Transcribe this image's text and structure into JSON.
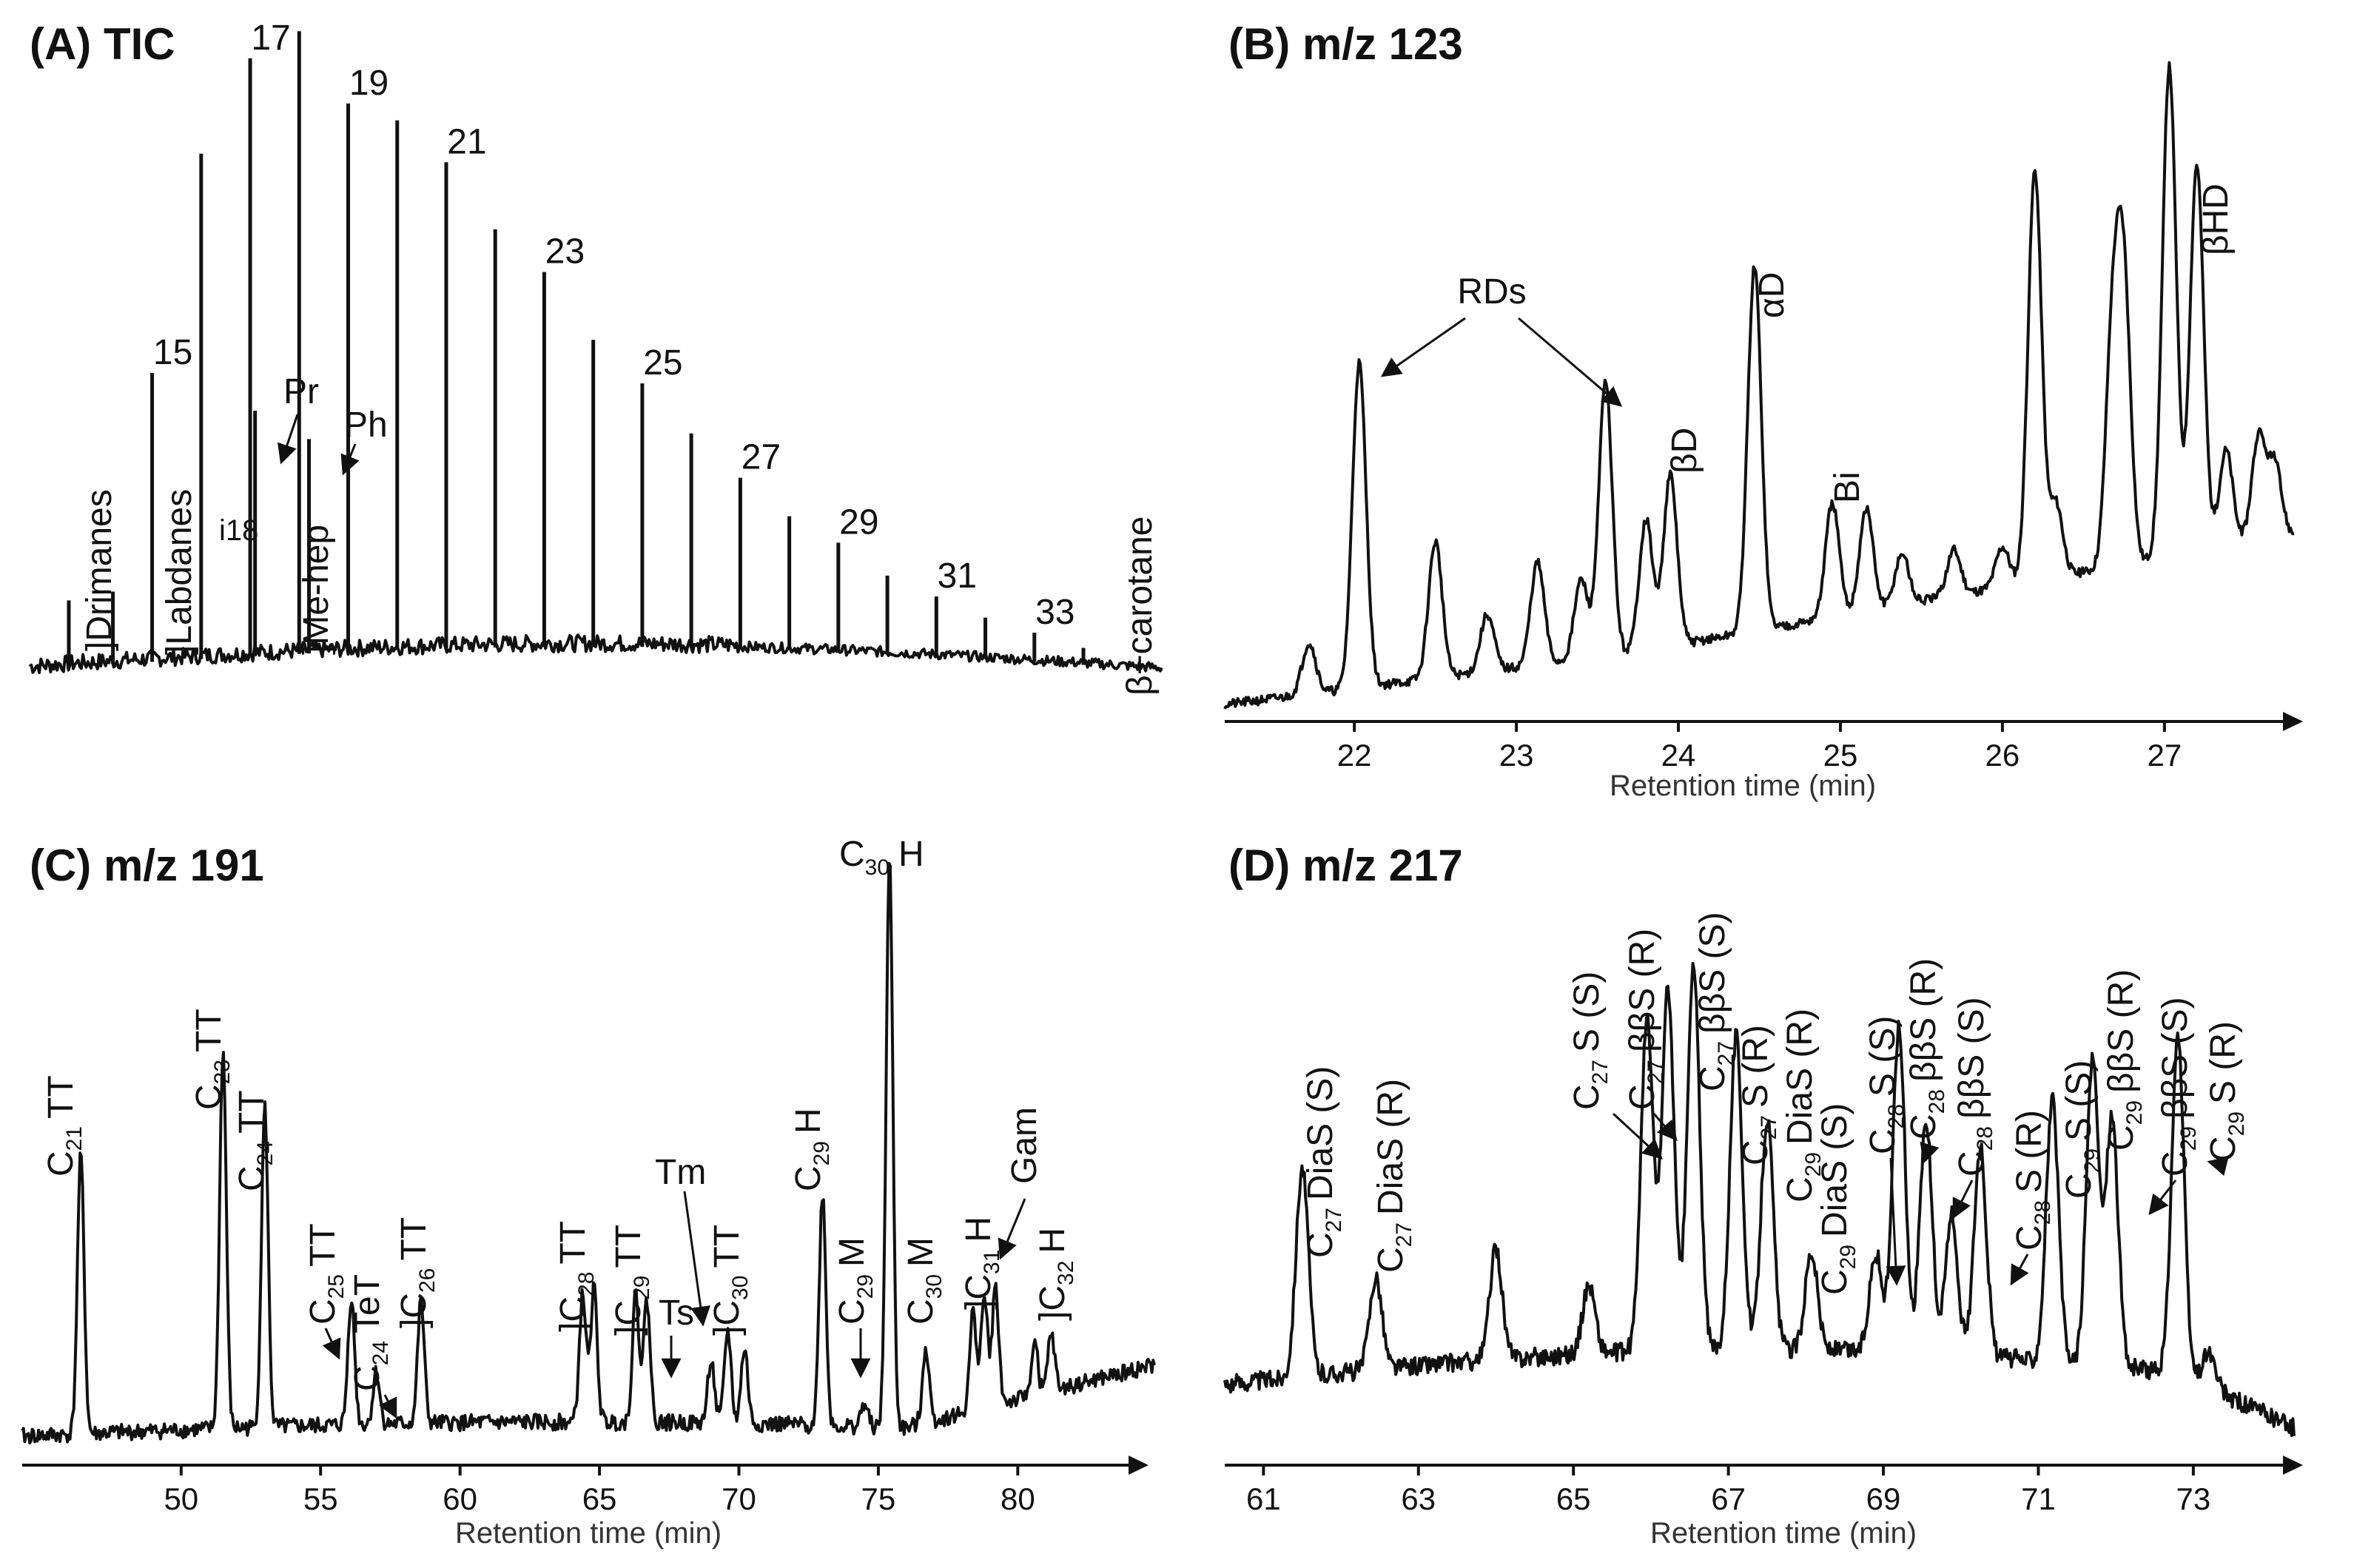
{
  "chart_data": [
    {
      "type": "line",
      "title": "(A) TIC",
      "xlabel": "",
      "ylabel": "",
      "ylim": [
        0,
        100
      ],
      "description_units": "relative abundance vs retention index (n-alkane carbon number)",
      "peaks": [
        {
          "x": 13.3,
          "h": 11
        },
        {
          "x": 14.2,
          "h": 12
        },
        {
          "x": 15.0,
          "h": 47
        },
        {
          "x": 16.0,
          "h": 82
        },
        {
          "x": 17.0,
          "h": 97
        },
        {
          "x": 17.1,
          "h": 40
        },
        {
          "x": 18.0,
          "h": 101
        },
        {
          "x": 18.2,
          "h": 35
        },
        {
          "x": 19.0,
          "h": 89
        },
        {
          "x": 20.0,
          "h": 86
        },
        {
          "x": 21.0,
          "h": 79
        },
        {
          "x": 22.0,
          "h": 68
        },
        {
          "x": 23.0,
          "h": 61
        },
        {
          "x": 24.0,
          "h": 50
        },
        {
          "x": 25.0,
          "h": 43
        },
        {
          "x": 26.0,
          "h": 35
        },
        {
          "x": 27.0,
          "h": 28
        },
        {
          "x": 28.0,
          "h": 22
        },
        {
          "x": 29.0,
          "h": 18
        },
        {
          "x": 30.0,
          "h": 13
        },
        {
          "x": 31.0,
          "h": 10
        },
        {
          "x": 32.0,
          "h": 7
        },
        {
          "x": 33.0,
          "h": 5
        },
        {
          "x": 34.0,
          "h": 3
        }
      ],
      "labels": [
        {
          "text": "15",
          "x": 15.0
        },
        {
          "text": "17",
          "x": 17.0
        },
        {
          "text": "19",
          "x": 19.0
        },
        {
          "text": "21",
          "x": 21.0
        },
        {
          "text": "23",
          "x": 23.0
        },
        {
          "text": "25",
          "x": 25.0
        },
        {
          "text": "27",
          "x": 27.0
        },
        {
          "text": "29",
          "x": 29.0
        },
        {
          "text": "31",
          "x": 31.0
        },
        {
          "text": "33",
          "x": 33.0
        }
      ],
      "annotations": [
        "Drimanes",
        "Labdanes",
        "i18",
        "Pr",
        "Me-hep",
        "Ph",
        "β−carotane"
      ]
    },
    {
      "type": "line",
      "title": "(B) m/z 123",
      "xlabel": "Retention time (min)",
      "ylabel": "",
      "xlim": [
        21.2,
        27.8
      ],
      "ylim": [
        0,
        100
      ],
      "xticks": [
        22,
        23,
        24,
        25,
        26,
        27
      ],
      "peaks": [
        {
          "x": 21.72,
          "h": 9
        },
        {
          "x": 22.03,
          "h": 57
        },
        {
          "x": 22.5,
          "h": 24
        },
        {
          "x": 22.82,
          "h": 10
        },
        {
          "x": 23.13,
          "h": 18
        },
        {
          "x": 23.4,
          "h": 14
        },
        {
          "x": 23.55,
          "h": 48
        },
        {
          "x": 23.8,
          "h": 23
        },
        {
          "x": 23.95,
          "h": 30
        },
        {
          "x": 24.47,
          "h": 64
        },
        {
          "x": 24.95,
          "h": 20
        },
        {
          "x": 25.16,
          "h": 18
        },
        {
          "x": 25.38,
          "h": 9
        },
        {
          "x": 25.7,
          "h": 8
        },
        {
          "x": 26.0,
          "h": 7
        },
        {
          "x": 26.2,
          "h": 72
        },
        {
          "x": 26.33,
          "h": 13
        },
        {
          "x": 26.68,
          "h": 40
        },
        {
          "x": 26.75,
          "h": 48
        },
        {
          "x": 27.03,
          "h": 86
        },
        {
          "x": 27.2,
          "h": 68
        },
        {
          "x": 27.38,
          "h": 17
        },
        {
          "x": 27.58,
          "h": 18
        },
        {
          "x": 27.68,
          "h": 13
        }
      ],
      "annotations": [
        "RDs",
        "βD",
        "αD",
        "Bi",
        "βHD"
      ]
    },
    {
      "type": "line",
      "title": "(C) m/z 191",
      "xlabel": "Retention time (min)",
      "ylabel": "",
      "xlim": [
        44.3,
        84.9
      ],
      "ylim": [
        0,
        100
      ],
      "xticks": [
        50,
        55,
        60,
        65,
        70,
        75,
        80
      ],
      "peaks": [
        {
          "x": 46.4,
          "h": 48
        },
        {
          "x": 51.5,
          "h": 65
        },
        {
          "x": 53.0,
          "h": 55
        },
        {
          "x": 56.1,
          "h": 22
        },
        {
          "x": 57.0,
          "h": 9
        },
        {
          "x": 58.6,
          "h": 21
        },
        {
          "x": 64.4,
          "h": 22
        },
        {
          "x": 64.8,
          "h": 23
        },
        {
          "x": 66.3,
          "h": 22
        },
        {
          "x": 66.7,
          "h": 21
        },
        {
          "x": 69.0,
          "h": 11
        },
        {
          "x": 69.6,
          "h": 16
        },
        {
          "x": 70.2,
          "h": 13
        },
        {
          "x": 73.0,
          "h": 40
        },
        {
          "x": 74.5,
          "h": 4
        },
        {
          "x": 75.4,
          "h": 98
        },
        {
          "x": 76.7,
          "h": 13
        },
        {
          "x": 78.4,
          "h": 17
        },
        {
          "x": 78.8,
          "h": 19
        },
        {
          "x": 79.2,
          "h": 20
        },
        {
          "x": 80.6,
          "h": 9
        },
        {
          "x": 81.2,
          "h": 10
        }
      ],
      "annotations": [
        "C21 TT",
        "C23 TT",
        "C24 TT",
        "C25 TT",
        "C24 TeT",
        "C26 TT",
        "C28 TT",
        "C29 TT",
        "Ts",
        "Tm",
        "C30 TT",
        "C29 H",
        "C29 M",
        "C30 H",
        "C30 M",
        "C31 H",
        "Gam",
        "C32 H"
      ]
    },
    {
      "type": "line",
      "title": "(D) m/z 217",
      "xlabel": "Retention time (min)",
      "ylabel": "",
      "xlim": [
        60.5,
        74.3
      ],
      "ylim": [
        0,
        100
      ],
      "xticks": [
        61,
        63,
        65,
        67,
        69,
        71,
        73
      ],
      "peaks": [
        {
          "x": 61.5,
          "h": 36
        },
        {
          "x": 62.45,
          "h": 16
        },
        {
          "x": 64.0,
          "h": 19
        },
        {
          "x": 65.2,
          "h": 12
        },
        {
          "x": 65.95,
          "h": 57
        },
        {
          "x": 66.22,
          "h": 62
        },
        {
          "x": 66.55,
          "h": 66
        },
        {
          "x": 67.1,
          "h": 54
        },
        {
          "x": 67.5,
          "h": 40
        },
        {
          "x": 68.07,
          "h": 17
        },
        {
          "x": 68.9,
          "h": 17
        },
        {
          "x": 69.2,
          "h": 56
        },
        {
          "x": 69.55,
          "h": 40
        },
        {
          "x": 69.88,
          "h": 24
        },
        {
          "x": 70.25,
          "h": 36
        },
        {
          "x": 71.18,
          "h": 45
        },
        {
          "x": 71.7,
          "h": 52
        },
        {
          "x": 71.95,
          "h": 43
        },
        {
          "x": 72.8,
          "h": 58
        },
        {
          "x": 73.2,
          "h": 6
        }
      ],
      "annotations": [
        "C27 DiaS (S)",
        "C27 DiaS (R)",
        "C27 S (S)",
        "C27 ββS (R)",
        "C27 ββS (S)",
        "C27 S (R)",
        "C29 DiaS (R)",
        "C29 DiaS (S)",
        "C28 S (S)",
        "C28 ββS (R)",
        "C28 ββS (S)",
        "C28 S (R)",
        "C29 S (S)",
        "C29 ββS (R)",
        "C29 ββS (S)",
        "C29 S (R)"
      ]
    }
  ],
  "panels": {
    "a": {
      "title": "(A) TIC",
      "lab_drimanes": "Drimanes",
      "lab_labdanes": "Labdanes",
      "lab_i18": "i18",
      "lab_pr": "Pr",
      "lab_mehep": "Me-hep",
      "lab_ph": "Ph",
      "lab_carotane": "β−carotane",
      "bracket": "]"
    },
    "b": {
      "title": "(B) m/z 123",
      "xlabel": "Retention time (min)",
      "lab_rds": "RDs",
      "lab_bd": "βD",
      "lab_ad": "αD",
      "lab_bi": "Bi",
      "lab_bhd": "βHD"
    },
    "c": {
      "title": "(C) m/z 191",
      "xlabel": "Retention time (min)",
      "C": "C",
      "n21": "21",
      "n23": "23",
      "n24": "24",
      "n25": "25",
      "n26": "26",
      "n28": "28",
      "n29": "29",
      "n30": "30",
      "n31": "31",
      "n32": "32",
      "TT": "TT",
      "TeT": "TeT",
      "H": "H",
      "M": "M",
      "Ts": "Ts",
      "Tm": "Tm",
      "Gam": "Gam",
      "bracket": "]"
    },
    "d": {
      "title": "(D) m/z 217",
      "xlabel": "Retention time (min)",
      "C": "C",
      "n27": "27",
      "n28": "28",
      "n29": "29",
      "DiaS_S": "DiaS (S)",
      "DiaS_R": "DiaS (R)",
      "S_S": "S (S)",
      "S_R": "S (R)",
      "bbS_R": "ββS (R)",
      "bbS_S": "ββS (S)"
    }
  }
}
